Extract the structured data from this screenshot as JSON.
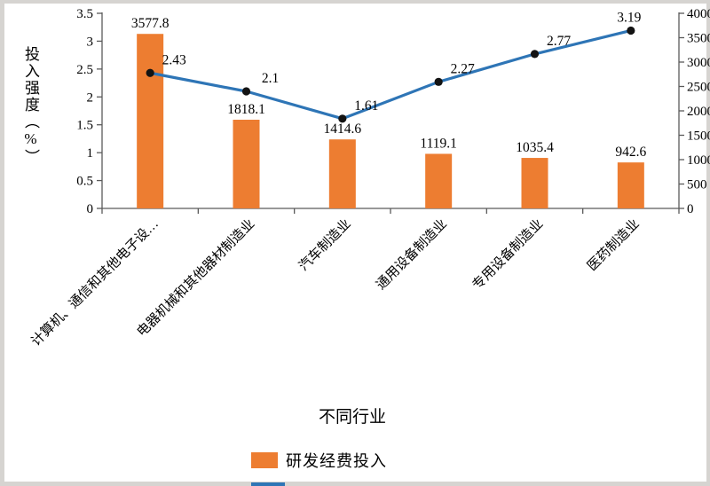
{
  "page": {
    "background_color": "#d6d4d1",
    "panel_color": "#ffffff"
  },
  "chart_data": {
    "type": "combo-bar-line",
    "categories": [
      "计算机、通信和其他电子设…",
      "电器机械和其他器材制造业",
      "汽车制造业",
      "通用设备制造业",
      "专用设备制造业",
      "医药制造业"
    ],
    "series": [
      {
        "name": "研发经费投入",
        "type": "bar",
        "axis": "right",
        "color": "#ED7D31",
        "values": [
          3577.8,
          1818.1,
          1414.6,
          1119.1,
          1035.4,
          942.6
        ],
        "labels": [
          "3577.8",
          "1818.1",
          "1414.6",
          "1119.1",
          "1035.4",
          "942.6"
        ]
      },
      {
        "name": "投入强度",
        "type": "line",
        "axis": "left",
        "color": "#2E75B6",
        "marker_color": "#131313",
        "values": [
          2.43,
          2.1,
          1.61,
          2.27,
          2.77,
          3.19
        ],
        "labels": [
          "2.43",
          "2.1",
          "1.61",
          "2.27",
          "2.77",
          "3.19"
        ]
      }
    ],
    "left_axis": {
      "title": "投入强度（%）",
      "min": 0,
      "max": 3.5,
      "tick_labels": [
        "0",
        "0.5",
        "1",
        "1.5",
        "2",
        "2.5",
        "3",
        "3.5"
      ]
    },
    "right_axis": {
      "min": 0,
      "max": 4000,
      "tick_labels": [
        "0",
        "500",
        "1000",
        "1500",
        "2000",
        "2500",
        "3000",
        "3500",
        "4000"
      ]
    },
    "xlabel": "不同行业",
    "grid": false,
    "legend_position": "bottom",
    "legend": {
      "visible_item": "研发经费投入",
      "swatch_color": "#ED7D31",
      "partial_item_color": "#2E75B6"
    }
  }
}
